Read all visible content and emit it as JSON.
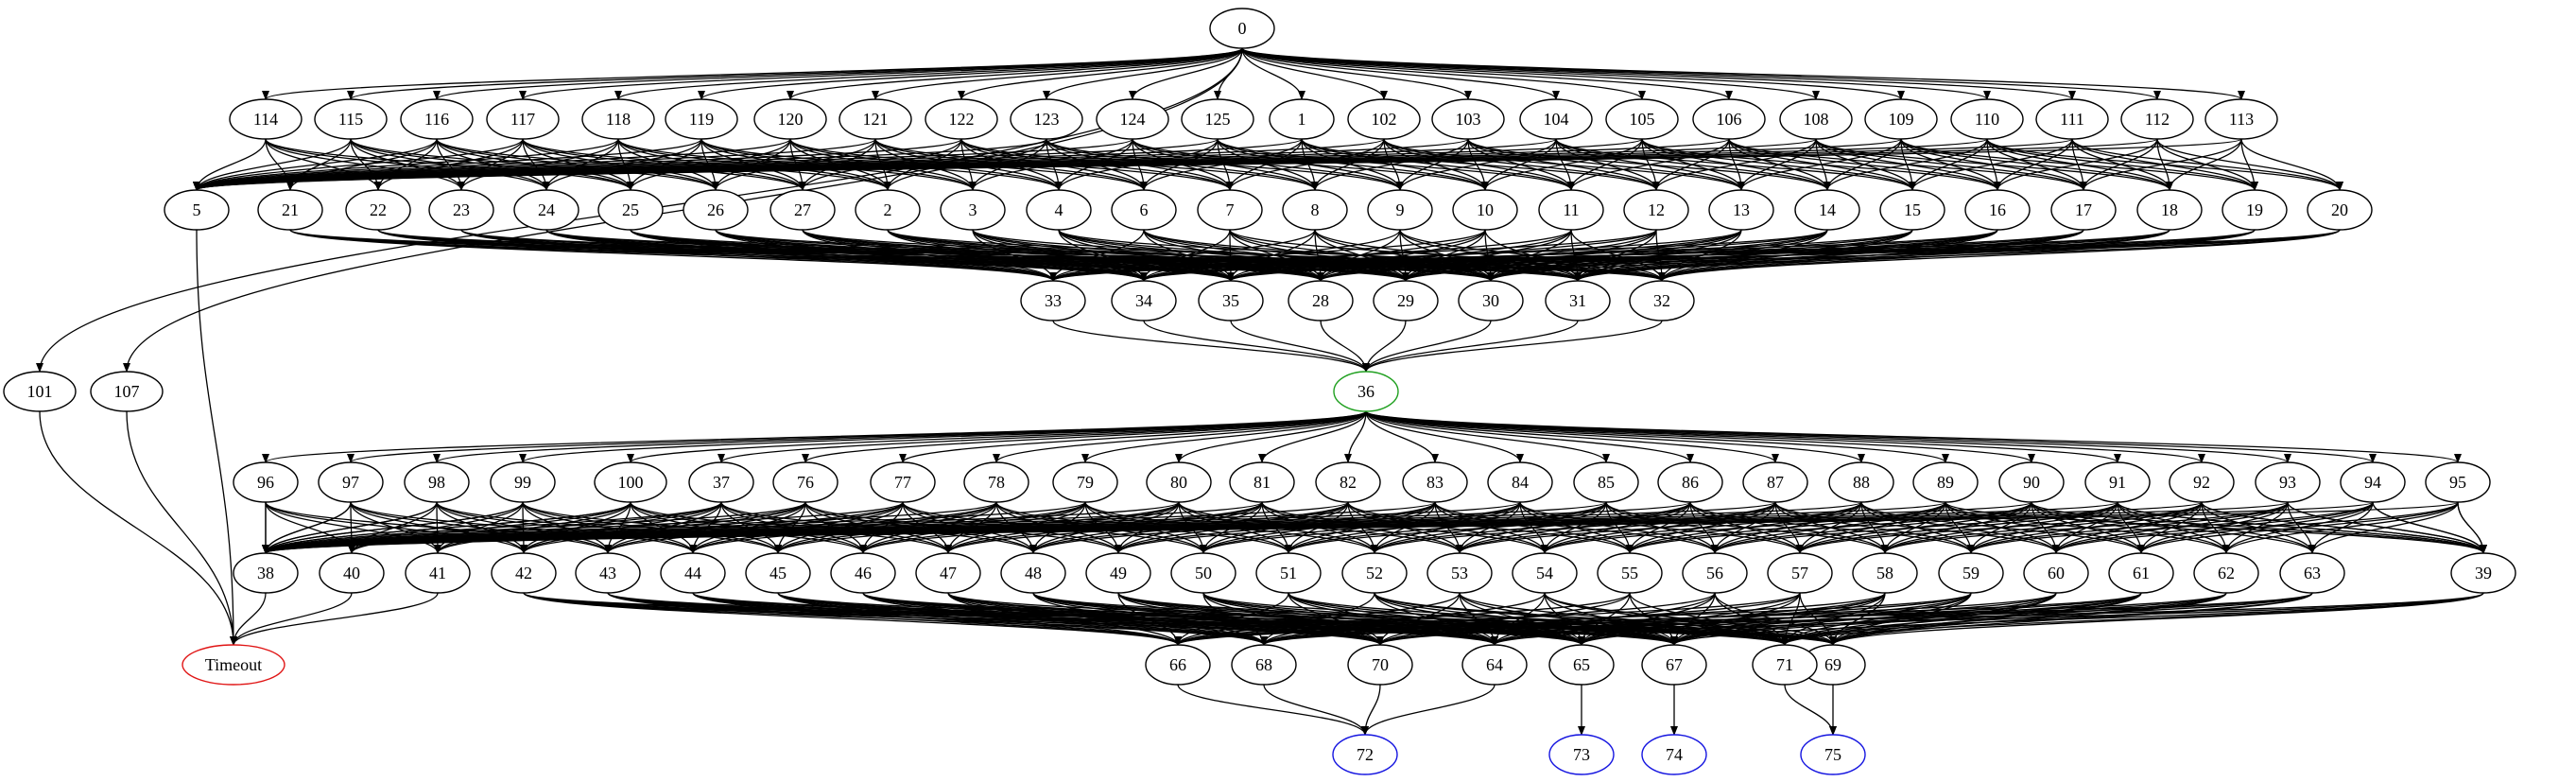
{
  "graph": {
    "nodes": [
      {
        "id": "n0",
        "label": "0"
      },
      {
        "id": "n1",
        "label": "1"
      },
      {
        "id": "n2",
        "label": "2"
      },
      {
        "id": "n3",
        "label": "3"
      },
      {
        "id": "n4",
        "label": "4"
      },
      {
        "id": "n5",
        "label": "5"
      },
      {
        "id": "n6",
        "label": "6"
      },
      {
        "id": "n7",
        "label": "7"
      },
      {
        "id": "n8",
        "label": "8"
      },
      {
        "id": "n9",
        "label": "9"
      },
      {
        "id": "n10",
        "label": "10"
      },
      {
        "id": "n11",
        "label": "11"
      },
      {
        "id": "n12",
        "label": "12"
      },
      {
        "id": "n13",
        "label": "13"
      },
      {
        "id": "n14",
        "label": "14"
      },
      {
        "id": "n15",
        "label": "15"
      },
      {
        "id": "n16",
        "label": "16"
      },
      {
        "id": "n17",
        "label": "17"
      },
      {
        "id": "n18",
        "label": "18"
      },
      {
        "id": "n19",
        "label": "19"
      },
      {
        "id": "n20",
        "label": "20"
      },
      {
        "id": "n21",
        "label": "21"
      },
      {
        "id": "n22",
        "label": "22"
      },
      {
        "id": "n23",
        "label": "23"
      },
      {
        "id": "n24",
        "label": "24"
      },
      {
        "id": "n25",
        "label": "25"
      },
      {
        "id": "n26",
        "label": "26"
      },
      {
        "id": "n27",
        "label": "27"
      },
      {
        "id": "n28",
        "label": "28"
      },
      {
        "id": "n29",
        "label": "29"
      },
      {
        "id": "n30",
        "label": "30"
      },
      {
        "id": "n31",
        "label": "31"
      },
      {
        "id": "n32",
        "label": "32"
      },
      {
        "id": "n33",
        "label": "33"
      },
      {
        "id": "n34",
        "label": "34"
      },
      {
        "id": "n35",
        "label": "35"
      },
      {
        "id": "n36",
        "label": "36",
        "border": "green"
      },
      {
        "id": "n37",
        "label": "37"
      },
      {
        "id": "n38",
        "label": "38"
      },
      {
        "id": "n39",
        "label": "39"
      },
      {
        "id": "n40",
        "label": "40"
      },
      {
        "id": "n41",
        "label": "41"
      },
      {
        "id": "n42",
        "label": "42"
      },
      {
        "id": "n43",
        "label": "43"
      },
      {
        "id": "n44",
        "label": "44"
      },
      {
        "id": "n45",
        "label": "45"
      },
      {
        "id": "n46",
        "label": "46"
      },
      {
        "id": "n47",
        "label": "47"
      },
      {
        "id": "n48",
        "label": "48"
      },
      {
        "id": "n49",
        "label": "49"
      },
      {
        "id": "n50",
        "label": "50"
      },
      {
        "id": "n51",
        "label": "51"
      },
      {
        "id": "n52",
        "label": "52"
      },
      {
        "id": "n53",
        "label": "53"
      },
      {
        "id": "n54",
        "label": "54"
      },
      {
        "id": "n55",
        "label": "55"
      },
      {
        "id": "n56",
        "label": "56"
      },
      {
        "id": "n57",
        "label": "57"
      },
      {
        "id": "n58",
        "label": "58"
      },
      {
        "id": "n59",
        "label": "59"
      },
      {
        "id": "n60",
        "label": "60"
      },
      {
        "id": "n61",
        "label": "61"
      },
      {
        "id": "n62",
        "label": "62"
      },
      {
        "id": "n63",
        "label": "63"
      },
      {
        "id": "n64",
        "label": "64"
      },
      {
        "id": "n65",
        "label": "65"
      },
      {
        "id": "n66",
        "label": "66"
      },
      {
        "id": "n67",
        "label": "67"
      },
      {
        "id": "n68",
        "label": "68"
      },
      {
        "id": "n69",
        "label": "69"
      },
      {
        "id": "n70",
        "label": "70"
      },
      {
        "id": "n71",
        "label": "71"
      },
      {
        "id": "n72",
        "label": "72",
        "border": "blue"
      },
      {
        "id": "n73",
        "label": "73",
        "border": "blue"
      },
      {
        "id": "n74",
        "label": "74",
        "border": "blue"
      },
      {
        "id": "n75",
        "label": "75",
        "border": "blue"
      },
      {
        "id": "n76",
        "label": "76"
      },
      {
        "id": "n77",
        "label": "77"
      },
      {
        "id": "n78",
        "label": "78"
      },
      {
        "id": "n79",
        "label": "79"
      },
      {
        "id": "n80",
        "label": "80"
      },
      {
        "id": "n81",
        "label": "81"
      },
      {
        "id": "n82",
        "label": "82"
      },
      {
        "id": "n83",
        "label": "83"
      },
      {
        "id": "n84",
        "label": "84"
      },
      {
        "id": "n85",
        "label": "85"
      },
      {
        "id": "n86",
        "label": "86"
      },
      {
        "id": "n87",
        "label": "87"
      },
      {
        "id": "n88",
        "label": "88"
      },
      {
        "id": "n89",
        "label": "89"
      },
      {
        "id": "n90",
        "label": "90"
      },
      {
        "id": "n91",
        "label": "91"
      },
      {
        "id": "n92",
        "label": "92"
      },
      {
        "id": "n93",
        "label": "93"
      },
      {
        "id": "n94",
        "label": "94"
      },
      {
        "id": "n95",
        "label": "95"
      },
      {
        "id": "n96",
        "label": "96"
      },
      {
        "id": "n97",
        "label": "97"
      },
      {
        "id": "n98",
        "label": "98"
      },
      {
        "id": "n99",
        "label": "99"
      },
      {
        "id": "n100",
        "label": "100"
      },
      {
        "id": "n101",
        "label": "101"
      },
      {
        "id": "n102",
        "label": "102"
      },
      {
        "id": "n103",
        "label": "103"
      },
      {
        "id": "n104",
        "label": "104"
      },
      {
        "id": "n105",
        "label": "105"
      },
      {
        "id": "n106",
        "label": "106"
      },
      {
        "id": "n107",
        "label": "107"
      },
      {
        "id": "n108",
        "label": "108"
      },
      {
        "id": "n109",
        "label": "109"
      },
      {
        "id": "n110",
        "label": "110"
      },
      {
        "id": "n111",
        "label": "111"
      },
      {
        "id": "n112",
        "label": "112"
      },
      {
        "id": "n113",
        "label": "113"
      },
      {
        "id": "n114",
        "label": "114"
      },
      {
        "id": "n115",
        "label": "115"
      },
      {
        "id": "n116",
        "label": "116"
      },
      {
        "id": "n117",
        "label": "117"
      },
      {
        "id": "n118",
        "label": "118"
      },
      {
        "id": "n119",
        "label": "119"
      },
      {
        "id": "n120",
        "label": "120"
      },
      {
        "id": "n121",
        "label": "121"
      },
      {
        "id": "n122",
        "label": "122"
      },
      {
        "id": "n123",
        "label": "123"
      },
      {
        "id": "n124",
        "label": "124"
      },
      {
        "id": "n125",
        "label": "125"
      },
      {
        "id": "nTimeout",
        "label": "Timeout",
        "border": "red"
      }
    ],
    "colors": {
      "edge": "#000000",
      "default_border": "#000000",
      "green": "#20a020",
      "blue": "#1515e0",
      "red": "#e01515"
    }
  }
}
